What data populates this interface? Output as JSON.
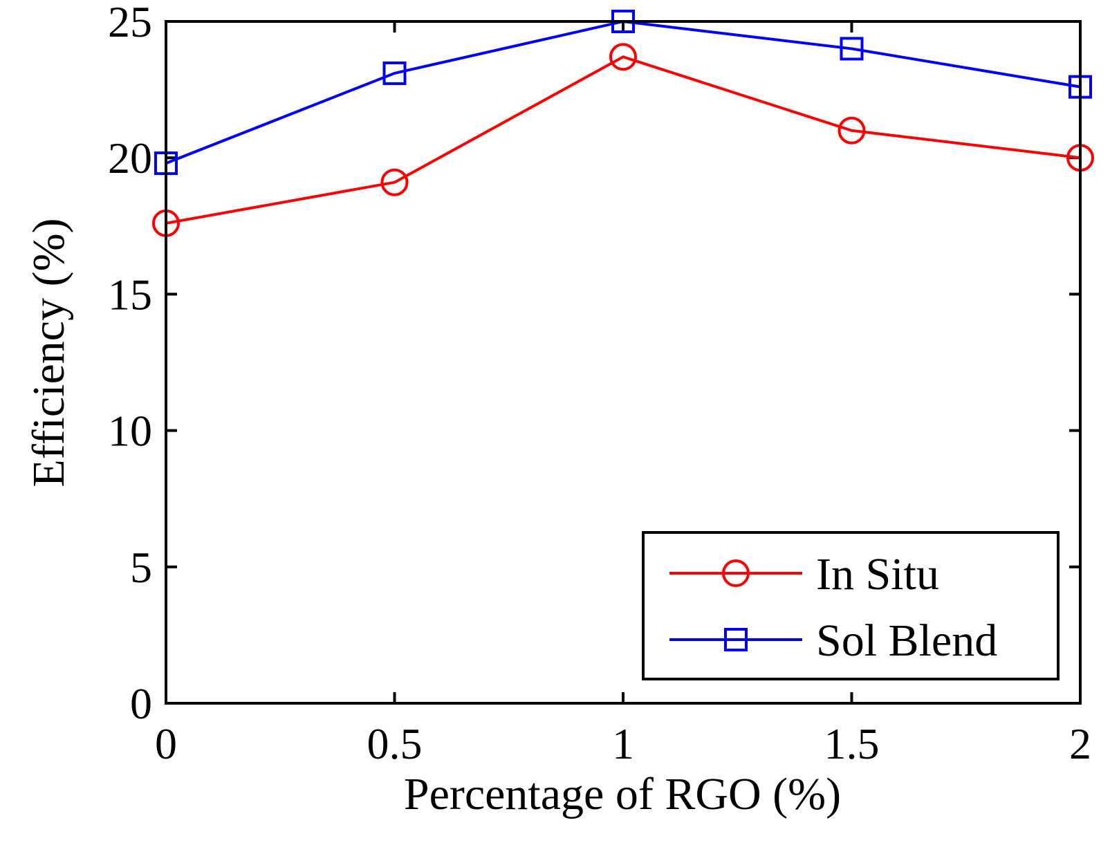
{
  "chart_data": {
    "type": "line",
    "title": "",
    "xlabel": "Percentage of RGO (%)",
    "ylabel": "Efficiency (%)",
    "x": [
      0,
      0.5,
      1,
      1.5,
      2
    ],
    "xlim": [
      0,
      2
    ],
    "ylim": [
      0,
      25
    ],
    "xticks": [
      0,
      0.5,
      1,
      1.5,
      2
    ],
    "xtick_labels": [
      "0",
      "0.5",
      "1",
      "1.5",
      "2"
    ],
    "yticks": [
      0,
      5,
      10,
      15,
      20,
      25
    ],
    "ytick_labels": [
      "0",
      "5",
      "10",
      "15",
      "20",
      "25"
    ],
    "grid": false,
    "legend_position": "bottom-right",
    "series": [
      {
        "name": "In Situ",
        "values": [
          17.6,
          19.1,
          23.7,
          21.0,
          20.0
        ],
        "color": "#ff0000",
        "marker": "circle"
      },
      {
        "name": "Sol Blend",
        "values": [
          19.8,
          23.1,
          25.0,
          24.0,
          22.6
        ],
        "color": "#0000ff",
        "marker": "square"
      }
    ]
  }
}
